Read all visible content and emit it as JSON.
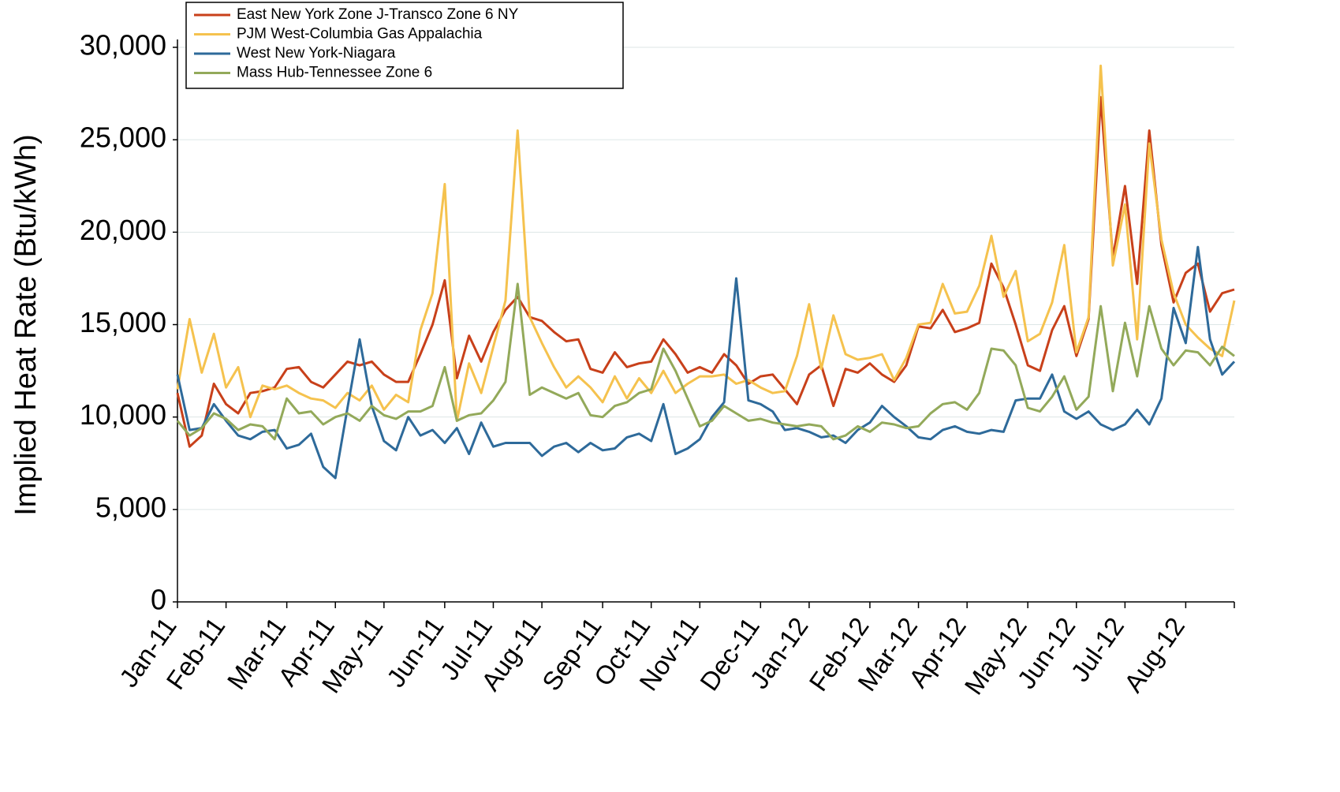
{
  "chart_data": {
    "type": "line",
    "y_label": "Implied Heat Rate (Btu/kWh)",
    "categories": [
      "Jan-11",
      null,
      null,
      null,
      "Feb-11",
      null,
      null,
      null,
      null,
      "Mar-11",
      null,
      null,
      null,
      "Apr-11",
      null,
      null,
      null,
      "May-11",
      null,
      null,
      null,
      null,
      "Jun-11",
      null,
      null,
      null,
      "Jul-11",
      null,
      null,
      null,
      "Aug-11",
      null,
      null,
      null,
      null,
      "Sep-11",
      null,
      null,
      null,
      "Oct-11",
      null,
      null,
      null,
      "Nov-11",
      null,
      null,
      null,
      null,
      "Dec-11",
      null,
      null,
      null,
      "Jan-12",
      null,
      null,
      null,
      null,
      "Feb-12",
      null,
      null,
      null,
      "Mar-12",
      null,
      null,
      null,
      "Apr-12",
      null,
      null,
      null,
      null,
      "May-12",
      null,
      null,
      null,
      "Jun-12",
      null,
      null,
      null,
      "Jul-12",
      null,
      null,
      null,
      null,
      "Aug-12",
      null,
      null,
      null,
      null
    ],
    "series": [
      {
        "name": "East New York Zone J-Transco Zone 6 NY",
        "color": "#c8401a",
        "values": [
          11300,
          8400,
          9000,
          11800,
          10700,
          10200,
          11300,
          11400,
          11600,
          12600,
          12700,
          11900,
          11600,
          12300,
          13000,
          12800,
          13000,
          12300,
          11900,
          11900,
          13400,
          15000,
          17400,
          12100,
          14400,
          13000,
          14600,
          15800,
          16500,
          15400,
          15200,
          14600,
          14100,
          14200,
          12600,
          12400,
          13500,
          12700,
          12900,
          13000,
          14200,
          13400,
          12400,
          12700,
          12400,
          13400,
          12800,
          11800,
          12200,
          12300,
          11500,
          10700,
          12300,
          12800,
          10600,
          12600,
          12400,
          12900,
          12300,
          11900,
          12800,
          14900,
          14800,
          15800,
          14600,
          14800,
          15100,
          18300,
          17000,
          15000,
          12800,
          12500,
          14700,
          16000,
          13300,
          15300,
          27300,
          18600,
          22500,
          17200,
          25500,
          19300,
          16200,
          17800,
          18300,
          15700,
          16700,
          16900
        ]
      },
      {
        "name": "PJM West-Columbia Gas Appalachia",
        "color": "#f5c24e",
        "values": [
          11500,
          15300,
          12400,
          14500,
          11600,
          12700,
          10000,
          11700,
          11500,
          11700,
          11300,
          11000,
          10900,
          10500,
          11300,
          10900,
          11700,
          10400,
          11200,
          10800,
          14700,
          16700,
          22600,
          9800,
          12900,
          11300,
          13800,
          16300,
          25500,
          15400,
          14000,
          12700,
          11600,
          12200,
          11600,
          10800,
          12200,
          11000,
          12100,
          11300,
          12500,
          11300,
          11800,
          12200,
          12200,
          12300,
          11800,
          12000,
          11600,
          11300,
          11400,
          13300,
          16100,
          12600,
          15500,
          13400,
          13100,
          13200,
          13400,
          12000,
          13200,
          15000,
          15100,
          17200,
          15600,
          15700,
          17100,
          19800,
          16500,
          17900,
          14100,
          14500,
          16200,
          19300,
          13500,
          15400,
          29000,
          18200,
          21500,
          14200,
          24800,
          19600,
          16700,
          15000,
          14300,
          13700,
          13300,
          16300
        ]
      },
      {
        "name": "West New York-Niagara",
        "color": "#2e6a9a",
        "values": [
          12300,
          9300,
          9400,
          10700,
          9800,
          9000,
          8800,
          9200,
          9300,
          8300,
          8500,
          9100,
          7300,
          6700,
          10500,
          14200,
          10600,
          8700,
          8200,
          10000,
          9000,
          9300,
          8600,
          9400,
          8000,
          9700,
          8400,
          8600,
          8600,
          8600,
          7900,
          8400,
          8600,
          8100,
          8600,
          8200,
          8300,
          8900,
          9100,
          8700,
          10700,
          8000,
          8300,
          8800,
          10000,
          10800,
          17500,
          10900,
          10700,
          10300,
          9300,
          9400,
          9200,
          8900,
          9000,
          8600,
          9300,
          9700,
          10600,
          10000,
          9500,
          8900,
          8800,
          9300,
          9500,
          9200,
          9100,
          9300,
          9200,
          10900,
          11000,
          11000,
          12300,
          10300,
          9900,
          10300,
          9600,
          9300,
          9600,
          10400,
          9600,
          11000,
          15900,
          14000,
          19200,
          14200,
          12300,
          13000
        ]
      },
      {
        "name": "Mass Hub-Tennessee Zone 6",
        "color": "#93a95a",
        "values": [
          9800,
          9000,
          9400,
          10200,
          9900,
          9300,
          9600,
          9500,
          8800,
          11000,
          10200,
          10300,
          9600,
          10000,
          10200,
          9800,
          10600,
          10100,
          9900,
          10300,
          10300,
          10600,
          12700,
          9800,
          10100,
          10200,
          10900,
          11900,
          17200,
          11200,
          11600,
          11300,
          11000,
          11300,
          10100,
          10000,
          10600,
          10800,
          11300,
          11500,
          13700,
          12500,
          11000,
          9500,
          9800,
          10600,
          10200,
          9800,
          9900,
          9700,
          9600,
          9500,
          9600,
          9500,
          8800,
          9000,
          9500,
          9200,
          9700,
          9600,
          9400,
          9500,
          10200,
          10700,
          10800,
          10400,
          11300,
          13700,
          13600,
          12800,
          10500,
          10300,
          11100,
          12200,
          10400,
          11100,
          16000,
          11400,
          15100,
          12200,
          16000,
          13700,
          12800,
          13600,
          13500,
          12800,
          13800,
          13300
        ]
      }
    ],
    "ylim": [
      0,
      30000
    ],
    "yticks": [
      0,
      {
        "value": 5000,
        "label": "5,000"
      },
      {
        "value": 10000,
        "label": "10,000"
      },
      {
        "value": 15000,
        "label": "15,000"
      },
      {
        "value": 20000,
        "label": "20,000"
      },
      {
        "value": 25000,
        "label": "25,000"
      },
      {
        "value": 30000,
        "label": "30,000"
      }
    ],
    "grid": true
  }
}
